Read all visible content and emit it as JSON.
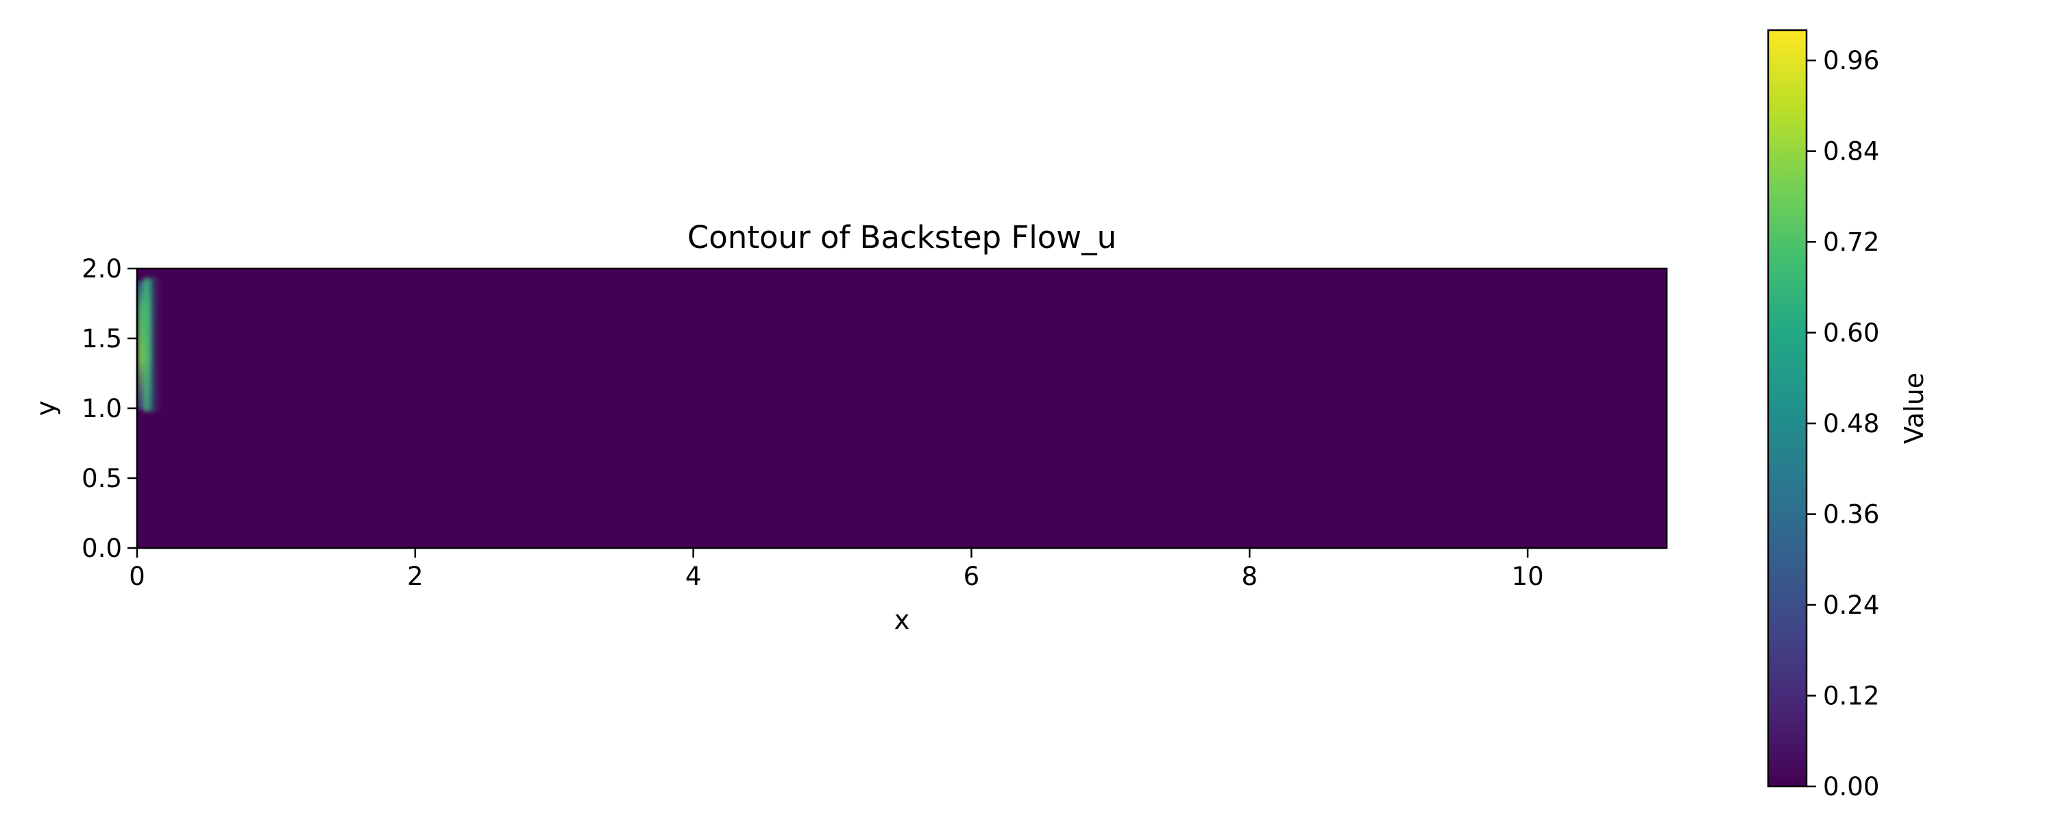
{
  "chart_data": {
    "type": "heatmap",
    "title": "Contour of Backstep Flow_u",
    "xlabel": "x",
    "ylabel": "y",
    "xlim": [
      0,
      11
    ],
    "ylim": [
      0,
      2
    ],
    "xticks": [
      "0",
      "2",
      "4",
      "6",
      "8",
      "10"
    ],
    "yticks": [
      "0.0",
      "0.5",
      "1.0",
      "1.5",
      "2.0"
    ],
    "colormap": "viridis",
    "background_value": 0.0,
    "field_samples": [
      {
        "x": 0.03,
        "y": 1.9,
        "value": 0.55
      },
      {
        "x": 0.03,
        "y": 1.6,
        "value": 0.72
      },
      {
        "x": 0.03,
        "y": 1.4,
        "value": 0.75
      },
      {
        "x": 0.03,
        "y": 1.2,
        "value": 0.6
      },
      {
        "x": 0.08,
        "y": 1.05,
        "value": 0.3
      },
      {
        "x": 0.15,
        "y": 1.05,
        "value": 0.15
      }
    ],
    "colorbar": {
      "label": "Value",
      "vmin": 0.0,
      "vmax": 1.0,
      "ticks": [
        "0.00",
        "0.12",
        "0.24",
        "0.36",
        "0.48",
        "0.60",
        "0.72",
        "0.84",
        "0.96"
      ]
    },
    "grid": false
  }
}
